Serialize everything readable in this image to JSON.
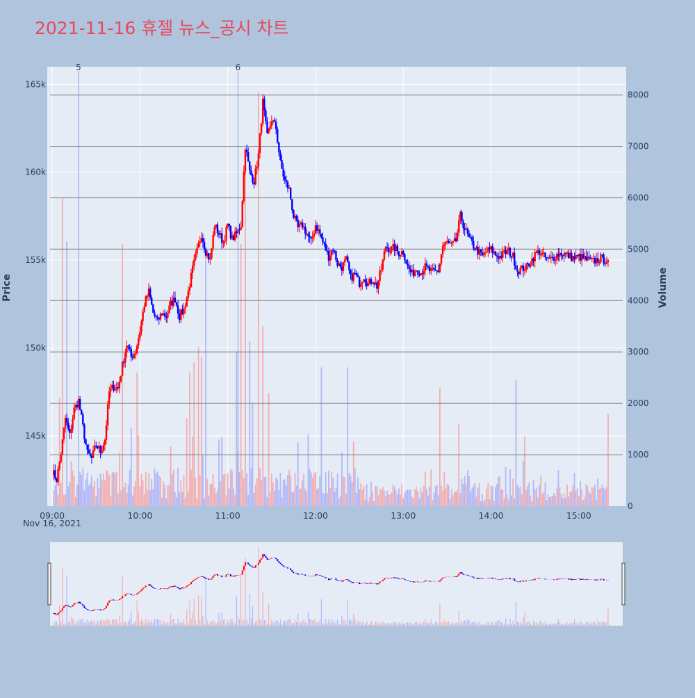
{
  "title": "2021-11-16 휴젤 뉴스_공시 차트",
  "colors": {
    "page_bg": "#b0c4de",
    "plot_bg": "#e5ecf6",
    "title": "#e8485a",
    "up": "#ff0000",
    "down": "#0000ff",
    "hline": "#7f7f7f",
    "vline": "#6b8fe0",
    "text": "#2a3f5f"
  },
  "chart_data": {
    "type": "candlestick",
    "x_axis": {
      "ticks": [
        "09:00",
        "10:00",
        "11:00",
        "12:00",
        "13:00",
        "14:00",
        "15:00"
      ],
      "date_label": "Nov 16, 2021",
      "range": [
        "08:59",
        "15:30"
      ]
    },
    "y_price": {
      "label": "Price",
      "ticks": [
        145000,
        150000,
        155000,
        160000,
        165000
      ],
      "tick_labels": [
        "145k",
        "150k",
        "155k",
        "160k",
        "165k"
      ],
      "range": [
        141000,
        166000
      ]
    },
    "y_volume": {
      "label": "Volume",
      "ticks": [
        0,
        1000,
        2000,
        3000,
        4000,
        5000,
        6000,
        7000,
        8000
      ],
      "range": [
        0,
        8550
      ]
    },
    "horizontal_lines_volume_levels": [
      1000,
      2000,
      3000,
      4000,
      5000,
      6000,
      7000,
      8000
    ],
    "annotations": [
      {
        "label": "5",
        "time": "09:18"
      },
      {
        "label": "6",
        "time": "11:07"
      }
    ],
    "price_path": [
      [
        "09:00",
        143000
      ],
      [
        "09:03",
        142500
      ],
      [
        "09:06",
        144000
      ],
      [
        "09:09",
        146000
      ],
      [
        "09:12",
        145000
      ],
      [
        "09:15",
        146500
      ],
      [
        "09:18",
        147000
      ],
      [
        "09:21",
        145500
      ],
      [
        "09:24",
        144000
      ],
      [
        "09:27",
        143700
      ],
      [
        "09:30",
        144500
      ],
      [
        "09:33",
        144100
      ],
      [
        "09:36",
        144800
      ],
      [
        "09:39",
        147500
      ],
      [
        "09:42",
        147800
      ],
      [
        "09:45",
        147700
      ],
      [
        "09:48",
        149000
      ],
      [
        "09:51",
        150200
      ],
      [
        "09:54",
        149500
      ],
      [
        "09:57",
        149800
      ],
      [
        "10:00",
        151000
      ],
      [
        "10:03",
        152500
      ],
      [
        "10:06",
        153200
      ],
      [
        "10:09",
        152000
      ],
      [
        "10:12",
        151500
      ],
      [
        "10:15",
        152000
      ],
      [
        "10:18",
        151800
      ],
      [
        "10:21",
        152500
      ],
      [
        "10:24",
        152800
      ],
      [
        "10:27",
        151800
      ],
      [
        "10:30",
        152200
      ],
      [
        "10:33",
        153200
      ],
      [
        "10:36",
        154500
      ],
      [
        "10:39",
        155500
      ],
      [
        "10:42",
        156500
      ],
      [
        "10:45",
        155500
      ],
      [
        "10:48",
        155000
      ],
      [
        "10:51",
        157000
      ],
      [
        "10:54",
        156500
      ],
      [
        "10:57",
        156000
      ],
      [
        "11:00",
        157000
      ],
      [
        "11:03",
        156200
      ],
      [
        "11:06",
        156500
      ],
      [
        "11:09",
        157000
      ],
      [
        "11:12",
        161500
      ],
      [
        "11:15",
        160000
      ],
      [
        "11:18",
        159500
      ],
      [
        "11:21",
        161000
      ],
      [
        "11:24",
        164000
      ],
      [
        "11:27",
        162000
      ],
      [
        "11:30",
        163000
      ],
      [
        "11:33",
        162500
      ],
      [
        "11:36",
        160500
      ],
      [
        "11:39",
        159500
      ],
      [
        "11:42",
        159000
      ],
      [
        "11:45",
        157500
      ],
      [
        "11:48",
        156800
      ],
      [
        "11:51",
        157000
      ],
      [
        "11:54",
        156500
      ],
      [
        "11:57",
        156000
      ],
      [
        "12:00",
        157000
      ],
      [
        "12:03",
        156500
      ],
      [
        "12:06",
        155800
      ],
      [
        "12:09",
        155200
      ],
      [
        "12:12",
        155700
      ],
      [
        "12:15",
        154800
      ],
      [
        "12:18",
        154600
      ],
      [
        "12:21",
        155000
      ],
      [
        "12:24",
        154000
      ],
      [
        "12:27",
        154200
      ],
      [
        "12:30",
        153700
      ],
      [
        "12:33",
        154100
      ],
      [
        "12:36",
        153600
      ],
      [
        "12:39",
        153900
      ],
      [
        "12:42",
        153500
      ],
      [
        "12:45",
        154500
      ],
      [
        "12:48",
        155800
      ],
      [
        "12:51",
        155600
      ],
      [
        "12:54",
        155700
      ],
      [
        "12:57",
        155400
      ],
      [
        "13:00",
        155500
      ],
      [
        "13:03",
        154600
      ],
      [
        "13:06",
        154200
      ],
      [
        "13:09",
        154500
      ],
      [
        "13:12",
        154300
      ],
      [
        "13:15",
        154600
      ],
      [
        "13:18",
        154400
      ],
      [
        "13:21",
        154300
      ],
      [
        "13:24",
        154400
      ],
      [
        "13:27",
        155800
      ],
      [
        "13:30",
        156000
      ],
      [
        "13:33",
        155800
      ],
      [
        "13:36",
        156100
      ],
      [
        "13:39",
        157500
      ],
      [
        "13:42",
        156800
      ],
      [
        "13:45",
        156200
      ],
      [
        "13:48",
        155800
      ],
      [
        "13:51",
        155500
      ],
      [
        "13:54",
        155200
      ],
      [
        "13:57",
        155500
      ],
      [
        "14:00",
        155600
      ],
      [
        "14:03",
        155300
      ],
      [
        "14:06",
        155200
      ],
      [
        "14:09",
        155400
      ],
      [
        "14:12",
        155500
      ],
      [
        "14:15",
        155200
      ],
      [
        "14:18",
        154400
      ],
      [
        "14:21",
        154500
      ],
      [
        "14:24",
        154600
      ],
      [
        "14:27",
        154900
      ],
      [
        "14:30",
        155300
      ],
      [
        "14:33",
        155500
      ],
      [
        "14:36",
        155200
      ],
      [
        "14:39",
        155000
      ],
      [
        "14:42",
        155100
      ],
      [
        "14:45",
        155300
      ],
      [
        "14:48",
        155400
      ],
      [
        "14:51",
        155300
      ],
      [
        "14:54",
        155200
      ],
      [
        "14:57",
        155100
      ],
      [
        "15:00",
        155200
      ],
      [
        "15:03",
        155100
      ],
      [
        "15:06",
        155000
      ],
      [
        "15:09",
        154900
      ],
      [
        "15:12",
        155000
      ],
      [
        "15:15",
        155100
      ],
      [
        "15:18",
        155000
      ],
      [
        "15:20",
        155000
      ]
    ],
    "volume_spikes": [
      [
        "09:00",
        2800
      ],
      [
        "09:05",
        2100
      ],
      [
        "09:07",
        6000
      ],
      [
        "09:10",
        5150
      ],
      [
        "09:48",
        5100
      ],
      [
        "09:58",
        2600
      ],
      [
        "10:32",
        1700
      ],
      [
        "10:34",
        2600
      ],
      [
        "10:37",
        2800
      ],
      [
        "10:40",
        3100
      ],
      [
        "10:42",
        2900
      ],
      [
        "10:45",
        5050
      ],
      [
        "11:06",
        3000
      ],
      [
        "11:09",
        5100
      ],
      [
        "11:12",
        6900
      ],
      [
        "11:15",
        3200
      ],
      [
        "11:17",
        2000
      ],
      [
        "11:21",
        8050
      ],
      [
        "11:24",
        3500
      ],
      [
        "11:28",
        2200
      ],
      [
        "12:04",
        2700
      ],
      [
        "12:22",
        2700
      ],
      [
        "13:25",
        2300
      ],
      [
        "13:38",
        1600
      ],
      [
        "14:17",
        2450
      ],
      [
        "14:23",
        1350
      ],
      [
        "15:20",
        1800
      ]
    ]
  }
}
